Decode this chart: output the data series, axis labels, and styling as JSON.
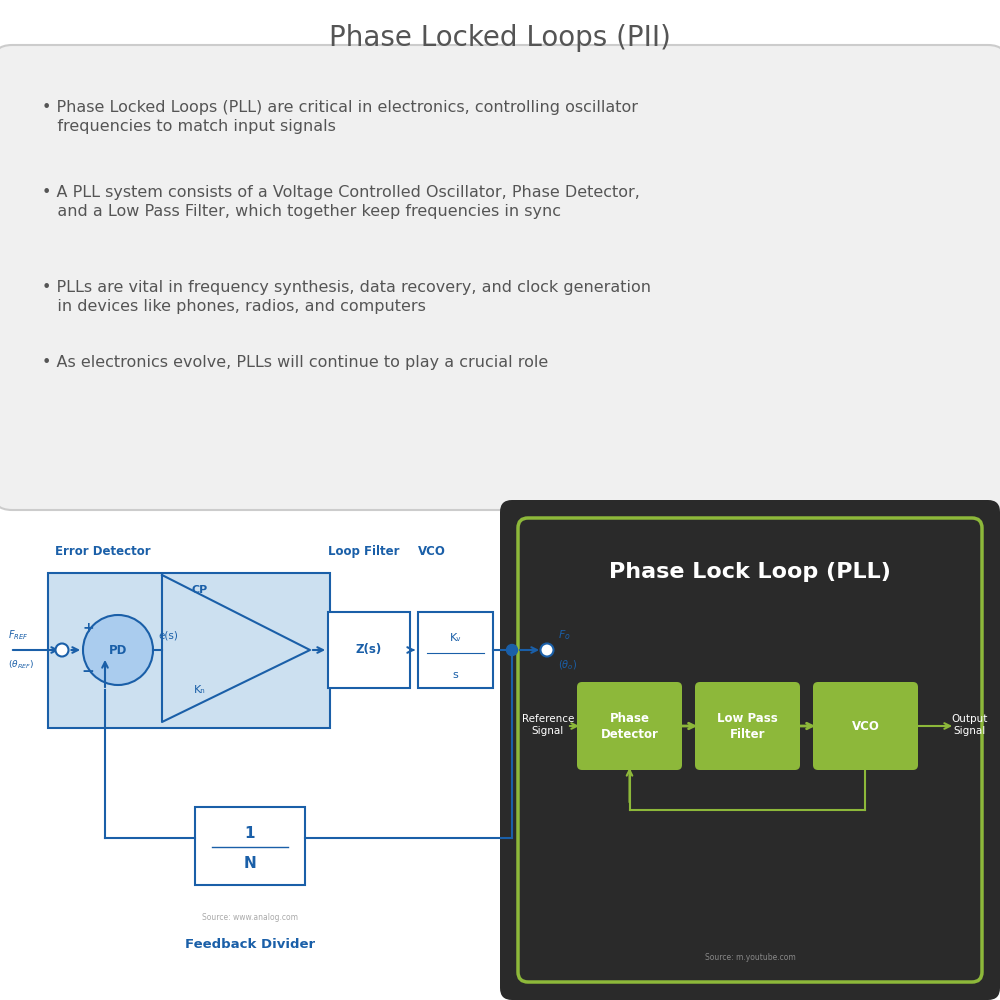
{
  "title": "Phase Locked Loops (PII)",
  "title_color": "#555555",
  "bg_color": "#ffffff",
  "bullet_points": [
    "Phase Locked Loops (PLL) are critical in electronics, controlling oscillator\n   frequencies to match input signals",
    "A PLL system consists of a Voltage Controlled Oscillator, Phase Detector,\n   and a Low Pass Filter, which together keep frequencies in sync",
    "PLLs are vital in frequency synthesis, data recovery, and clock generation\n   in devices like phones, radios, and computers",
    "As electronics evolve, PLLs will continue to play a crucial role"
  ],
  "text_box_bg": "#f0f0f0",
  "text_color": "#555555",
  "pll_box_bg": "#2a2a2a",
  "pll_title": "Phase Lock Loop (PLL)",
  "pll_border_color": "#8db83a",
  "diagram_blue": "#1a5fa8",
  "diagram_light_blue": "#cce0f0",
  "error_detector_label": "Error Detector",
  "loop_filter_label": "Loop Filter",
  "vco_label": "VCO",
  "feedback_label": "Feedback Divider",
  "source_left": "Source: www.analog.com",
  "source_right": "Source: m.youtube.com",
  "pll_blocks": [
    "Phase\nDetector",
    "Low Pass\nFilter",
    "VCO"
  ],
  "pll_block_color": "#8db83a",
  "ref_signal_label": "Reference\nSignal",
  "out_signal_label": "Output\nSignal"
}
